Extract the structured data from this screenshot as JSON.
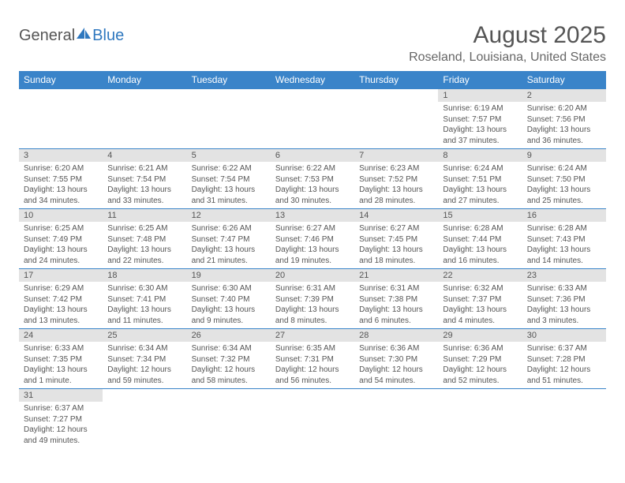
{
  "logo": {
    "general": "General",
    "blue": "Blue"
  },
  "title": "August 2025",
  "location": "Roseland, Louisiana, United States",
  "colors": {
    "header_bg": "#3a84c9",
    "header_text": "#ffffff",
    "daynum_bg": "#e3e3e3",
    "text": "#555555",
    "logo_blue": "#2f78bf",
    "page_bg": "#ffffff",
    "week_border": "#3a84c9"
  },
  "weekdays": [
    "Sunday",
    "Monday",
    "Tuesday",
    "Wednesday",
    "Thursday",
    "Friday",
    "Saturday"
  ],
  "weeks": [
    [
      null,
      null,
      null,
      null,
      null,
      {
        "n": "1",
        "sr": "Sunrise: 6:19 AM",
        "ss": "Sunset: 7:57 PM",
        "dl": "Daylight: 13 hours and 37 minutes."
      },
      {
        "n": "2",
        "sr": "Sunrise: 6:20 AM",
        "ss": "Sunset: 7:56 PM",
        "dl": "Daylight: 13 hours and 36 minutes."
      }
    ],
    [
      {
        "n": "3",
        "sr": "Sunrise: 6:20 AM",
        "ss": "Sunset: 7:55 PM",
        "dl": "Daylight: 13 hours and 34 minutes."
      },
      {
        "n": "4",
        "sr": "Sunrise: 6:21 AM",
        "ss": "Sunset: 7:54 PM",
        "dl": "Daylight: 13 hours and 33 minutes."
      },
      {
        "n": "5",
        "sr": "Sunrise: 6:22 AM",
        "ss": "Sunset: 7:54 PM",
        "dl": "Daylight: 13 hours and 31 minutes."
      },
      {
        "n": "6",
        "sr": "Sunrise: 6:22 AM",
        "ss": "Sunset: 7:53 PM",
        "dl": "Daylight: 13 hours and 30 minutes."
      },
      {
        "n": "7",
        "sr": "Sunrise: 6:23 AM",
        "ss": "Sunset: 7:52 PM",
        "dl": "Daylight: 13 hours and 28 minutes."
      },
      {
        "n": "8",
        "sr": "Sunrise: 6:24 AM",
        "ss": "Sunset: 7:51 PM",
        "dl": "Daylight: 13 hours and 27 minutes."
      },
      {
        "n": "9",
        "sr": "Sunrise: 6:24 AM",
        "ss": "Sunset: 7:50 PM",
        "dl": "Daylight: 13 hours and 25 minutes."
      }
    ],
    [
      {
        "n": "10",
        "sr": "Sunrise: 6:25 AM",
        "ss": "Sunset: 7:49 PM",
        "dl": "Daylight: 13 hours and 24 minutes."
      },
      {
        "n": "11",
        "sr": "Sunrise: 6:25 AM",
        "ss": "Sunset: 7:48 PM",
        "dl": "Daylight: 13 hours and 22 minutes."
      },
      {
        "n": "12",
        "sr": "Sunrise: 6:26 AM",
        "ss": "Sunset: 7:47 PM",
        "dl": "Daylight: 13 hours and 21 minutes."
      },
      {
        "n": "13",
        "sr": "Sunrise: 6:27 AM",
        "ss": "Sunset: 7:46 PM",
        "dl": "Daylight: 13 hours and 19 minutes."
      },
      {
        "n": "14",
        "sr": "Sunrise: 6:27 AM",
        "ss": "Sunset: 7:45 PM",
        "dl": "Daylight: 13 hours and 18 minutes."
      },
      {
        "n": "15",
        "sr": "Sunrise: 6:28 AM",
        "ss": "Sunset: 7:44 PM",
        "dl": "Daylight: 13 hours and 16 minutes."
      },
      {
        "n": "16",
        "sr": "Sunrise: 6:28 AM",
        "ss": "Sunset: 7:43 PM",
        "dl": "Daylight: 13 hours and 14 minutes."
      }
    ],
    [
      {
        "n": "17",
        "sr": "Sunrise: 6:29 AM",
        "ss": "Sunset: 7:42 PM",
        "dl": "Daylight: 13 hours and 13 minutes."
      },
      {
        "n": "18",
        "sr": "Sunrise: 6:30 AM",
        "ss": "Sunset: 7:41 PM",
        "dl": "Daylight: 13 hours and 11 minutes."
      },
      {
        "n": "19",
        "sr": "Sunrise: 6:30 AM",
        "ss": "Sunset: 7:40 PM",
        "dl": "Daylight: 13 hours and 9 minutes."
      },
      {
        "n": "20",
        "sr": "Sunrise: 6:31 AM",
        "ss": "Sunset: 7:39 PM",
        "dl": "Daylight: 13 hours and 8 minutes."
      },
      {
        "n": "21",
        "sr": "Sunrise: 6:31 AM",
        "ss": "Sunset: 7:38 PM",
        "dl": "Daylight: 13 hours and 6 minutes."
      },
      {
        "n": "22",
        "sr": "Sunrise: 6:32 AM",
        "ss": "Sunset: 7:37 PM",
        "dl": "Daylight: 13 hours and 4 minutes."
      },
      {
        "n": "23",
        "sr": "Sunrise: 6:33 AM",
        "ss": "Sunset: 7:36 PM",
        "dl": "Daylight: 13 hours and 3 minutes."
      }
    ],
    [
      {
        "n": "24",
        "sr": "Sunrise: 6:33 AM",
        "ss": "Sunset: 7:35 PM",
        "dl": "Daylight: 13 hours and 1 minute."
      },
      {
        "n": "25",
        "sr": "Sunrise: 6:34 AM",
        "ss": "Sunset: 7:34 PM",
        "dl": "Daylight: 12 hours and 59 minutes."
      },
      {
        "n": "26",
        "sr": "Sunrise: 6:34 AM",
        "ss": "Sunset: 7:32 PM",
        "dl": "Daylight: 12 hours and 58 minutes."
      },
      {
        "n": "27",
        "sr": "Sunrise: 6:35 AM",
        "ss": "Sunset: 7:31 PM",
        "dl": "Daylight: 12 hours and 56 minutes."
      },
      {
        "n": "28",
        "sr": "Sunrise: 6:36 AM",
        "ss": "Sunset: 7:30 PM",
        "dl": "Daylight: 12 hours and 54 minutes."
      },
      {
        "n": "29",
        "sr": "Sunrise: 6:36 AM",
        "ss": "Sunset: 7:29 PM",
        "dl": "Daylight: 12 hours and 52 minutes."
      },
      {
        "n": "30",
        "sr": "Sunrise: 6:37 AM",
        "ss": "Sunset: 7:28 PM",
        "dl": "Daylight: 12 hours and 51 minutes."
      }
    ],
    [
      {
        "n": "31",
        "sr": "Sunrise: 6:37 AM",
        "ss": "Sunset: 7:27 PM",
        "dl": "Daylight: 12 hours and 49 minutes."
      },
      null,
      null,
      null,
      null,
      null,
      null
    ]
  ]
}
